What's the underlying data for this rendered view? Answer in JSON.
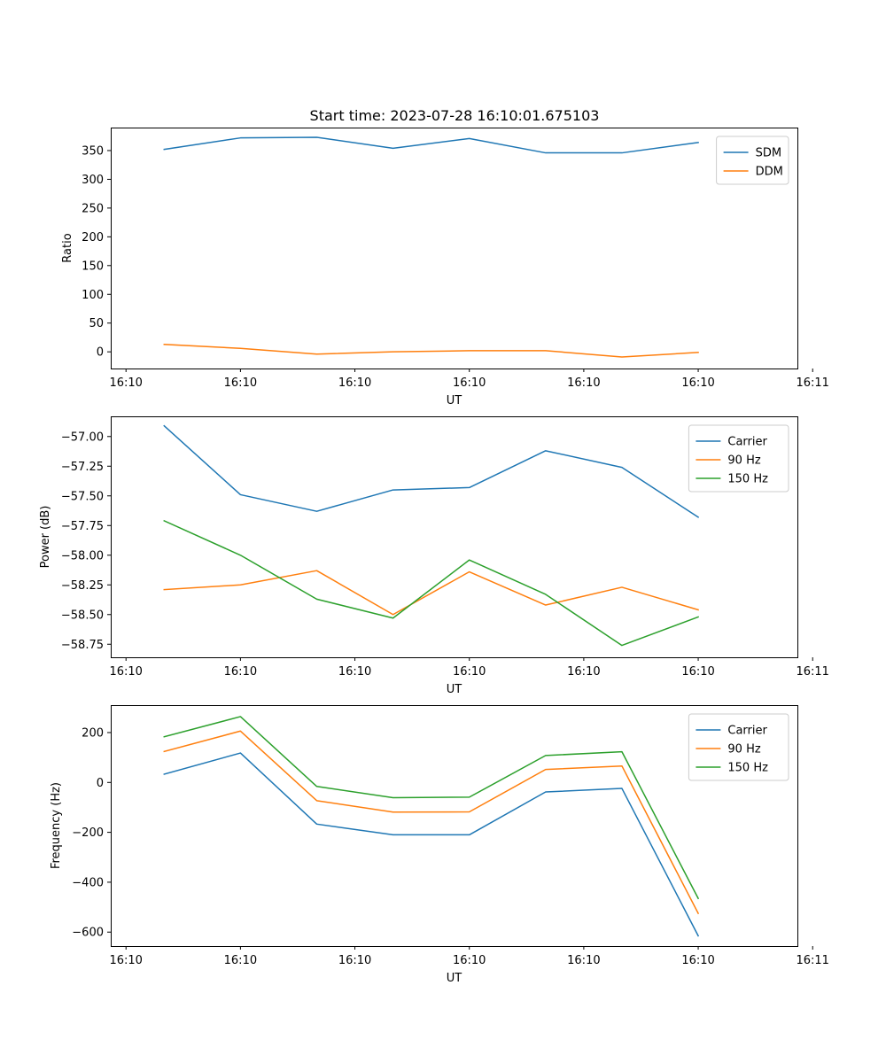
{
  "figure_title": "Start time: 2023-07-28 16:10:01.675103",
  "chart_data": [
    {
      "type": "line",
      "ylabel": "Ratio",
      "xlabel": "UT",
      "x": [
        1,
        2,
        3,
        4,
        5,
        6,
        7,
        8
      ],
      "xlim": [
        0.3,
        9.3
      ],
      "x_ticks": [
        0.5,
        2.0,
        3.5,
        5.0,
        6.5,
        8.0,
        9.5
      ],
      "x_tick_labels": [
        "16:10",
        "16:10",
        "16:10",
        "16:10",
        "16:10",
        "16:10",
        "16:11"
      ],
      "ylim": [
        -29,
        390
      ],
      "y_ticks": [
        0,
        50,
        100,
        150,
        200,
        250,
        300,
        350
      ],
      "y_tick_labels": [
        "0",
        "50",
        "100",
        "150",
        "200",
        "250",
        "300",
        "350"
      ],
      "legend_position": "top-right",
      "series": [
        {
          "name": "SDM",
          "color": "#1f77b4",
          "values": [
            352,
            372,
            373,
            354,
            371,
            346,
            346,
            364
          ]
        },
        {
          "name": "DDM",
          "color": "#ff7f0e",
          "values": [
            13,
            6,
            -4,
            0,
            2,
            2,
            -9,
            -1
          ]
        }
      ]
    },
    {
      "type": "line",
      "ylabel": "Power (dB)",
      "xlabel": "UT",
      "x": [
        1,
        2,
        3,
        4,
        5,
        6,
        7,
        8
      ],
      "xlim": [
        0.3,
        9.3
      ],
      "x_ticks": [
        0.5,
        2.0,
        3.5,
        5.0,
        6.5,
        8.0,
        9.5
      ],
      "x_tick_labels": [
        "16:10",
        "16:10",
        "16:10",
        "16:10",
        "16:10",
        "16:10",
        "16:11"
      ],
      "ylim": [
        -58.86,
        -56.83
      ],
      "y_ticks": [
        -57.0,
        -57.25,
        -57.5,
        -57.75,
        -58.0,
        -58.25,
        -58.5,
        -58.75
      ],
      "y_tick_labels": [
        "−57.00",
        "−57.25",
        "−57.50",
        "−57.75",
        "−58.00",
        "−58.25",
        "−58.50",
        "−58.75"
      ],
      "legend_position": "top-right",
      "series": [
        {
          "name": "Carrier",
          "color": "#1f77b4",
          "values": [
            -56.91,
            -57.49,
            -57.63,
            -57.45,
            -57.43,
            -57.12,
            -57.26,
            -57.68
          ]
        },
        {
          "name": "90 Hz",
          "color": "#ff7f0e",
          "values": [
            -58.29,
            -58.25,
            -58.13,
            -58.5,
            -58.14,
            -58.42,
            -58.27,
            -58.46
          ]
        },
        {
          "name": "150 Hz",
          "color": "#2ca02c",
          "values": [
            -57.71,
            -58.0,
            -58.37,
            -58.53,
            -58.04,
            -58.33,
            -58.76,
            -58.52
          ]
        }
      ]
    },
    {
      "type": "line",
      "ylabel": "Frequency (Hz)",
      "xlabel": "UT",
      "x": [
        1,
        2,
        3,
        4,
        5,
        6,
        7,
        8
      ],
      "xlim": [
        0.3,
        9.3
      ],
      "x_ticks": [
        0.5,
        2.0,
        3.5,
        5.0,
        6.5,
        8.0,
        9.5
      ],
      "x_tick_labels": [
        "16:10",
        "16:10",
        "16:10",
        "16:10",
        "16:10",
        "16:10",
        "16:11"
      ],
      "ylim": [
        -656,
        310
      ],
      "y_ticks": [
        200,
        0,
        -200,
        -400,
        -600
      ],
      "y_tick_labels": [
        "200",
        "0",
        "−200",
        "−400",
        "−600"
      ],
      "legend_position": "top-right",
      "series": [
        {
          "name": "Carrier",
          "color": "#1f77b4",
          "values": [
            33,
            118,
            -167,
            -210,
            -210,
            -38,
            -24,
            -615
          ]
        },
        {
          "name": "90 Hz",
          "color": "#ff7f0e",
          "values": [
            124,
            206,
            -73,
            -119,
            -118,
            52,
            66,
            -525
          ]
        },
        {
          "name": "150 Hz",
          "color": "#2ca02c",
          "values": [
            183,
            264,
            -16,
            -61,
            -59,
            108,
            123,
            -465
          ]
        }
      ]
    }
  ]
}
